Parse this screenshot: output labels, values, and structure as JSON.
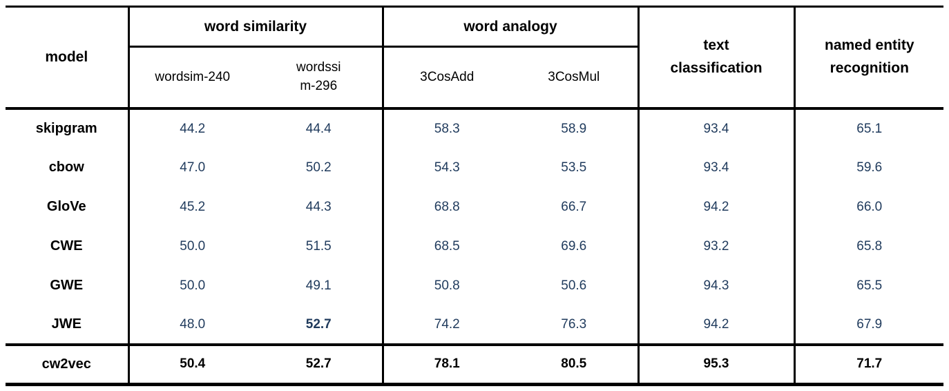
{
  "table": {
    "header": {
      "model": "model",
      "groups": [
        {
          "label": "word similarity",
          "subcolumns": [
            "wordsim-240",
            "wordssi\nm-296"
          ]
        },
        {
          "label": "word analogy",
          "subcolumns": [
            "3CosAdd",
            "3CosMul"
          ]
        }
      ],
      "text_classification": "text\nclassification",
      "named_entity_recognition": "named entity\nrecognition"
    },
    "rows": [
      {
        "model": "skipgram",
        "values": [
          "44.2",
          "44.4",
          "58.3",
          "58.9",
          "93.4",
          "65.1"
        ],
        "bold_value_indices": [],
        "final": false
      },
      {
        "model": "cbow",
        "values": [
          "47.0",
          "50.2",
          "54.3",
          "53.5",
          "93.4",
          "59.6"
        ],
        "bold_value_indices": [],
        "final": false
      },
      {
        "model": "GloVe",
        "values": [
          "45.2",
          "44.3",
          "68.8",
          "66.7",
          "94.2",
          "66.0"
        ],
        "bold_value_indices": [],
        "final": false
      },
      {
        "model": "CWE",
        "values": [
          "50.0",
          "51.5",
          "68.5",
          "69.6",
          "93.2",
          "65.8"
        ],
        "bold_value_indices": [],
        "final": false
      },
      {
        "model": "GWE",
        "values": [
          "50.0",
          "49.1",
          "50.8",
          "50.6",
          "94.3",
          "65.5"
        ],
        "bold_value_indices": [],
        "final": false
      },
      {
        "model": "JWE",
        "values": [
          "48.0",
          "52.7",
          "74.2",
          "76.3",
          "94.2",
          "67.9"
        ],
        "bold_value_indices": [
          1
        ],
        "final": false
      },
      {
        "model": "cw2vec",
        "values": [
          "50.4",
          "52.7",
          "78.1",
          "80.5",
          "95.3",
          "71.7"
        ],
        "bold_value_indices": [],
        "final": true
      }
    ],
    "colors": {
      "value_text": "#1F3A5C",
      "border": "#000000",
      "header_text": "#000000",
      "background": "#FFFFFF"
    }
  }
}
